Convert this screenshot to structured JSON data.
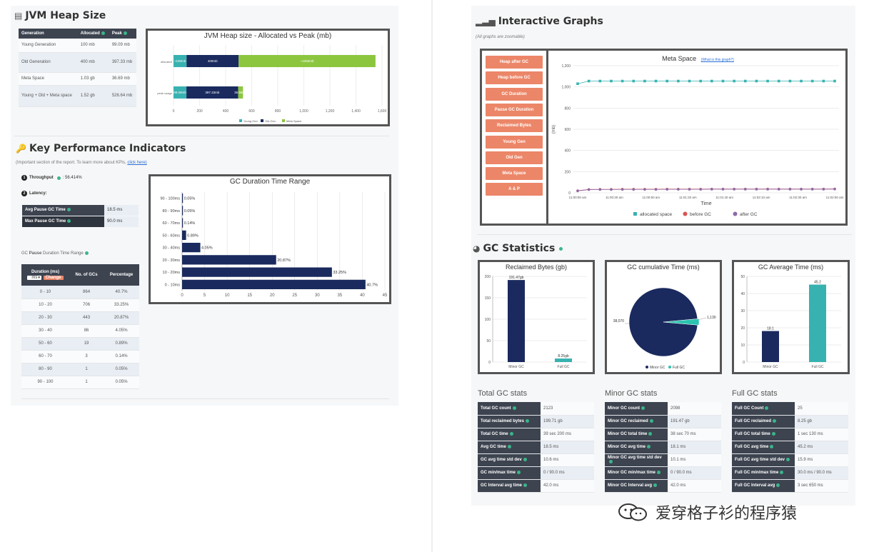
{
  "heap": {
    "title": "JVM Heap Size",
    "columns": [
      "Generation",
      "Allocated",
      "Peak"
    ],
    "rows": [
      {
        "gen": "Young Generation",
        "alloc": "100 mb",
        "peak": "99.09 mb"
      },
      {
        "gen": "Old Generation",
        "alloc": "400 mb",
        "peak": "397.33 mb"
      },
      {
        "gen": "Meta Space",
        "alloc": "1.03 gb",
        "peak": "36.69 mb"
      },
      {
        "gen": "Young + Old + Meta space",
        "alloc": "1.52 gb",
        "peak": "526.64 mb"
      }
    ]
  },
  "heap_chart": {
    "title": "JVM Heap size - Allocated vs Peak (mb)",
    "rows": [
      "allocated",
      "peak usage"
    ],
    "legend": [
      "Young Gen",
      "Old Gen",
      "Meta Space"
    ],
    "seg_labels": [
      "~100mb",
      "400mb",
      "~1050mb",
      "99.09mb",
      "397.33mb",
      "36.69mb"
    ],
    "ticks": [
      "0",
      "200",
      "400",
      "600",
      "800",
      "1,000",
      "1,200",
      "1,400",
      "1,600"
    ],
    "colors": [
      "#38b2b0",
      "#1a2a5e",
      "#8cc63f"
    ]
  },
  "kpi": {
    "title": "Key Performance Indicators",
    "note": "(Important section of the report. To learn more about KPIs,",
    "link": "click here)",
    "throughput_label": "Throughput",
    "throughput_value": ": 56.414%",
    "latency_label": "Latency:",
    "avg_pause_label": "Avg Pause GC Time",
    "avg_pause_value": "18.5 ms",
    "max_pause_label": "Max Pause GC Time",
    "max_pause_value": "90.0 ms",
    "range_title_1": "GC",
    "range_title_2": "Pause",
    "range_title_3": "Duration Time Range",
    "range_cols": [
      "Duration (ms)",
      "No. of GCs",
      "Percentage"
    ],
    "unit_select": "ms",
    "change_btn": "Change",
    "range_rows": [
      {
        "d": "0 - 10",
        "n": "864",
        "p": "40.7%"
      },
      {
        "d": "10 - 20",
        "n": "706",
        "p": "33.25%"
      },
      {
        "d": "20 - 30",
        "n": "443",
        "p": "20.87%"
      },
      {
        "d": "30 - 40",
        "n": "86",
        "p": "4.05%"
      },
      {
        "d": "50 - 60",
        "n": "19",
        "p": "0.89%"
      },
      {
        "d": "60 - 70",
        "n": "3",
        "p": "0.14%"
      },
      {
        "d": "80 - 90",
        "n": "1",
        "p": "0.05%"
      },
      {
        "d": "90 - 100",
        "n": "1",
        "p": "0.05%"
      }
    ]
  },
  "chart_data": [
    {
      "type": "bar",
      "title": "GC Duration Time Range",
      "orientation": "horizontal",
      "categories": [
        "90 - 100ms",
        "80 - 90ms",
        "60 - 70ms",
        "50 - 60ms",
        "30 - 40ms",
        "20 - 30ms",
        "10 - 20ms",
        "0 - 10ms"
      ],
      "values": [
        0.05,
        0.05,
        0.14,
        0.89,
        4.05,
        20.87,
        33.25,
        40.7
      ],
      "labels": [
        "0.05%",
        "0.05%",
        "0.14%",
        "0.89%",
        "4.05%",
        "20.87%",
        "33.25%",
        "40.7%"
      ],
      "xlim": [
        0,
        45
      ],
      "xticks": [
        "0",
        "5",
        "10",
        "15",
        "20",
        "25",
        "30",
        "35",
        "40",
        "45"
      ],
      "color": "#1a2a5e"
    },
    {
      "type": "line",
      "title": "Meta Space",
      "subtitle": "(What is this graph?)",
      "xlabel": "Time",
      "ylabel": "(mb)",
      "ylim": [
        0,
        1200
      ],
      "yticks": [
        "0",
        "200",
        "400",
        "600",
        "800",
        "1,000",
        "1,200"
      ],
      "xticks": [
        "11:00:00 am",
        "11:00:30 am",
        "11:00:50 am",
        "11:01:20 am",
        "11:01:40 am",
        "11:02:10 am",
        "11:02:30 am",
        "11:02:50 am"
      ],
      "series": [
        {
          "name": "allocated space",
          "color": "#38b2b0",
          "values": [
            1030,
            1055,
            1055,
            1055,
            1055,
            1055,
            1055,
            1055,
            1055,
            1055,
            1055,
            1055,
            1055,
            1055,
            1055,
            1055,
            1055,
            1055,
            1055,
            1055,
            1055,
            1055,
            1055,
            1055
          ]
        },
        {
          "name": "before GC",
          "color": "#d9534f",
          "values": [
            20,
            32,
            33,
            33,
            34,
            34,
            34,
            34,
            35,
            35,
            35,
            35,
            36,
            36,
            36,
            36,
            36,
            36,
            36,
            36,
            36,
            36,
            36,
            37
          ]
        },
        {
          "name": "after GC",
          "color": "#8e6aa8",
          "values": [
            18,
            30,
            31,
            31,
            32,
            32,
            32,
            32,
            33,
            33,
            33,
            33,
            34,
            34,
            34,
            34,
            34,
            34,
            34,
            34,
            34,
            34,
            34,
            35
          ]
        }
      ]
    },
    {
      "type": "bar",
      "title": "Reclaimed Bytes (gb)",
      "categories": [
        "Minor GC",
        "Full GC"
      ],
      "values": [
        191.47,
        8.25
      ],
      "labels": [
        "191.47gb",
        "8.25gb"
      ],
      "ylim": [
        0,
        200
      ],
      "yticks": [
        "0",
        "50",
        "100",
        "150",
        "200"
      ],
      "colors": [
        "#1a2a5e",
        "#38b2b0"
      ]
    },
    {
      "type": "pie",
      "title": "GC cumulative Time (ms)",
      "categories": [
        "Minor GC",
        "Full GC"
      ],
      "values": [
        38070,
        1130
      ],
      "labels": [
        "38,070",
        "1,130"
      ],
      "colors": [
        "#1a2a5e",
        "#2bc4b0"
      ]
    },
    {
      "type": "bar",
      "title": "GC Average Time (ms)",
      "categories": [
        "Minor GC",
        "Full GC"
      ],
      "values": [
        18.1,
        45.2
      ],
      "labels": [
        "18.1",
        "45.2"
      ],
      "ylim": [
        0,
        50
      ],
      "yticks": [
        "0",
        "10",
        "20",
        "30",
        "40",
        "50"
      ],
      "colors": [
        "#1a2a5e",
        "#38b2b0"
      ]
    }
  ],
  "graphs": {
    "title": "Interactive Graphs",
    "note": "(All graphs are zoomable)",
    "buttons": [
      "Heap after GC",
      "Heap before GC",
      "GC Duration",
      "Pause GC Duration",
      "Reclaimed Bytes",
      "Young Gen",
      "Old Gen",
      "Meta Space",
      "A & P"
    ]
  },
  "stats": {
    "title": "GC Statistics",
    "total_title": "Total GC stats",
    "minor_title": "Minor GC stats",
    "full_title": "Full GC stats",
    "total": [
      {
        "k": "Total GC count",
        "v": "2123"
      },
      {
        "k": "Total reclaimed bytes",
        "v": "199.71 gb"
      },
      {
        "k": "Total GC time",
        "v": "39 sec 200 ms"
      },
      {
        "k": "Avg GC time",
        "v": "18.5 ms"
      },
      {
        "k": "GC avg time std dev",
        "v": "10.6 ms"
      },
      {
        "k": "GC min/max time",
        "v": "0 / 90.0 ms"
      },
      {
        "k": "GC Interval avg time",
        "v": "42.0 ms"
      }
    ],
    "minor": [
      {
        "k": "Minor GC count",
        "v": "2098"
      },
      {
        "k": "Minor GC reclaimed",
        "v": "191.47 gb"
      },
      {
        "k": "Minor GC total time",
        "v": "38 sec 70 ms"
      },
      {
        "k": "Minor GC avg time",
        "v": "18.1 ms"
      },
      {
        "k": "Minor GC avg time std dev",
        "v": "10.1 ms"
      },
      {
        "k": "Minor GC min/max time",
        "v": "0 / 90.0 ms"
      },
      {
        "k": "Minor GC Interval avg",
        "v": "42.0 ms"
      }
    ],
    "full": [
      {
        "k": "Full GC Count",
        "v": "25"
      },
      {
        "k": "Full GC reclaimed",
        "v": "8.25 gb"
      },
      {
        "k": "Full GC total time",
        "v": "1 sec 130 ms"
      },
      {
        "k": "Full GC avg time",
        "v": "45.2 ms"
      },
      {
        "k": "Full GC avg time std dev",
        "v": "15.9 ms"
      },
      {
        "k": "Full GC min/max time",
        "v": "30.0 ms / 90.0 ms"
      },
      {
        "k": "Full GC Interval avg",
        "v": "3 sec 650 ms"
      }
    ]
  },
  "watermark": {
    "text": "爱穿格子衫的程序猿"
  }
}
